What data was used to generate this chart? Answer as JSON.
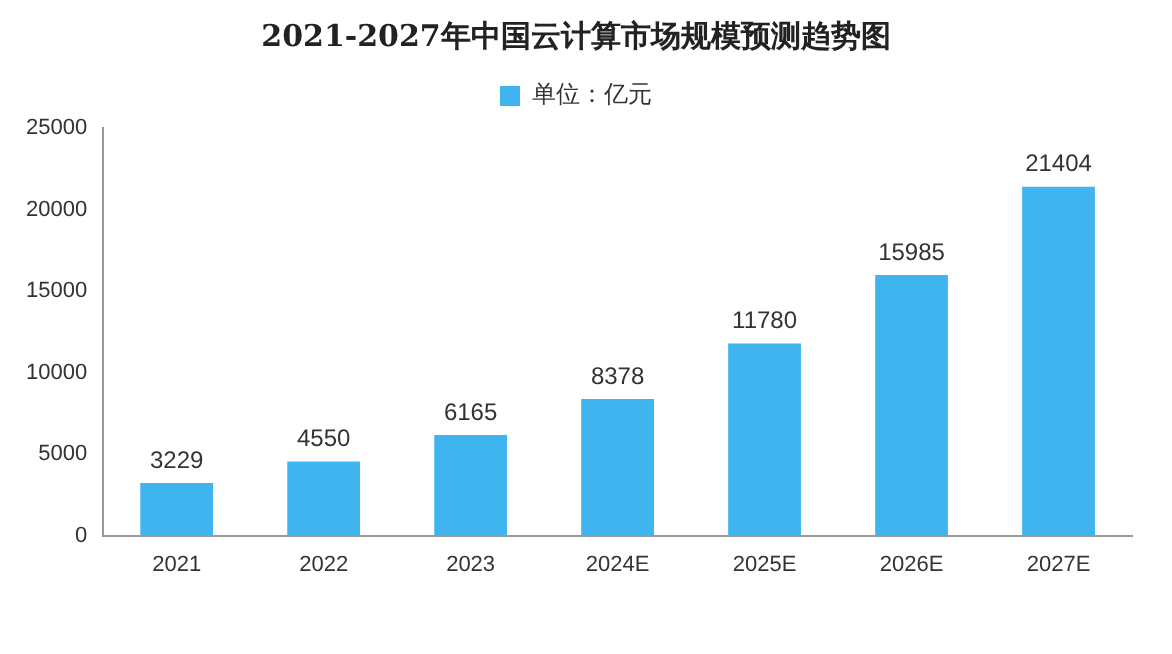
{
  "chart_data": {
    "type": "bar",
    "title": "2021-2027年中国云计算市场规模预测趋势图",
    "categories": [
      "2021",
      "2022",
      "2023",
      "2024E",
      "2025E",
      "2026E",
      "2027E"
    ],
    "series": [
      {
        "name": "单位：亿元",
        "color": "#3fb4ee",
        "values": [
          3229,
          4550,
          6165,
          8378,
          11780,
          15985,
          21404
        ]
      }
    ],
    "ylim": [
      0,
      25000
    ],
    "yticks": [
      0,
      5000,
      10000,
      15000,
      20000,
      25000
    ],
    "grid": false,
    "legend": "top",
    "data_labels": true
  }
}
